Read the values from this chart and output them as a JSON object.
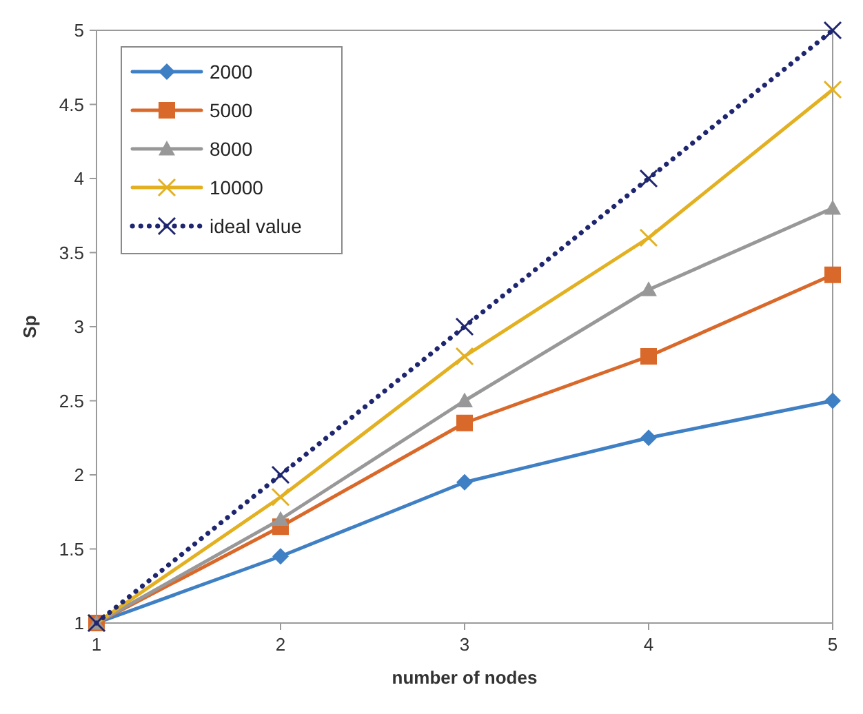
{
  "chart_data": {
    "type": "line",
    "xlabel": "number of nodes",
    "ylabel": "Sp",
    "x": [
      1,
      2,
      3,
      4,
      5
    ],
    "xlim": [
      1,
      5
    ],
    "xticks": [
      1,
      2,
      3,
      4,
      5
    ],
    "ylim": [
      1,
      5
    ],
    "yticks": [
      1,
      1.5,
      2,
      2.5,
      3,
      3.5,
      4,
      4.5,
      5
    ],
    "grid": false,
    "legend": "top left",
    "series": [
      {
        "name": "2000",
        "color": "#3f7fc4",
        "marker": "diamond",
        "line_style": "solid",
        "values": [
          1,
          1.45,
          1.95,
          2.25,
          2.5
        ]
      },
      {
        "name": "5000",
        "color": "#d9692a",
        "marker": "square",
        "line_style": "solid",
        "values": [
          1,
          1.65,
          2.35,
          2.8,
          3.35
        ]
      },
      {
        "name": "8000",
        "color": "#989898",
        "marker": "triangle",
        "line_style": "solid",
        "values": [
          1,
          1.7,
          2.5,
          3.25,
          3.8
        ]
      },
      {
        "name": "10000",
        "color": "#e2b020",
        "marker": "cross",
        "line_style": "solid",
        "values": [
          1,
          1.85,
          2.8,
          3.6,
          4.6
        ]
      },
      {
        "name": "ideal value",
        "color": "#1f2670",
        "marker": "cross",
        "line_style": "dotted",
        "values": [
          1,
          2,
          3,
          4,
          5
        ]
      }
    ]
  }
}
